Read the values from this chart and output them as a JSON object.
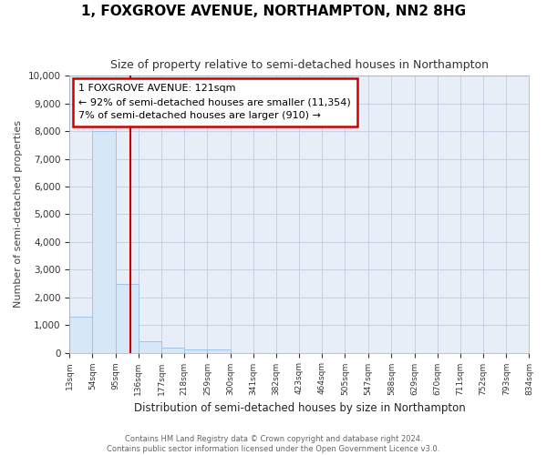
{
  "title": "1, FOXGROVE AVENUE, NORTHAMPTON, NN2 8HG",
  "subtitle": "Size of property relative to semi-detached houses in Northampton",
  "xlabel": "Distribution of semi-detached houses by size in Northampton",
  "ylabel": "Number of semi-detached properties",
  "footer_line1": "Contains HM Land Registry data © Crown copyright and database right 2024.",
  "footer_line2": "Contains public sector information licensed under the Open Government Licence v3.0.",
  "bin_edges": [
    13,
    54,
    95,
    136,
    177,
    218,
    259,
    300,
    341,
    382,
    423,
    464,
    505,
    547,
    588,
    629,
    670,
    711,
    752,
    793,
    834
  ],
  "bar_heights": [
    1300,
    8000,
    2500,
    400,
    175,
    120,
    120,
    0,
    0,
    0,
    0,
    0,
    0,
    0,
    0,
    0,
    0,
    0,
    0,
    0
  ],
  "property_size": 121,
  "property_label": "1 FOXGROVE AVENUE: 121sqm",
  "annotation_line1": "← 92% of semi-detached houses are smaller (11,354)",
  "annotation_line2": "7% of semi-detached houses are larger (910) →",
  "bar_color": "#d6e8f7",
  "bar_edge_color": "#a0c4e8",
  "marker_line_color": "#cc0000",
  "annotation_box_edge_color": "#cc0000",
  "annotation_box_face_color": "#ffffff",
  "background_color": "#ffffff",
  "plot_bg_color": "#e8eef8",
  "grid_color": "#c0cce0",
  "ylim": [
    0,
    10000
  ],
  "yticks": [
    0,
    1000,
    2000,
    3000,
    4000,
    5000,
    6000,
    7000,
    8000,
    9000,
    10000
  ]
}
